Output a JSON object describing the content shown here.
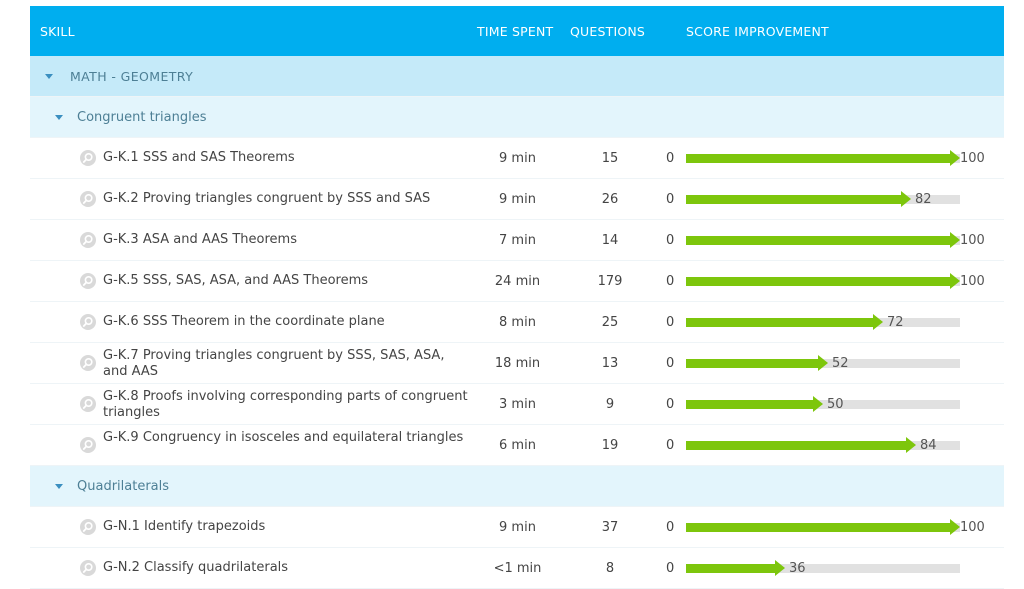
{
  "header": {
    "skill": "SKILL",
    "time_spent": "TIME SPENT",
    "questions": "QUESTIONS",
    "score_improvement": "SCORE IMPROVEMENT"
  },
  "category": {
    "label": "MATH - GEOMETRY"
  },
  "groups": [
    {
      "label": "Congruent triangles",
      "skills": [
        {
          "name": "G-K.1 SSS and SAS Theorems",
          "time": "9 min",
          "questions": "15",
          "start": "0",
          "score": 100
        },
        {
          "name": "G-K.2 Proving triangles congruent by SSS and SAS",
          "time": "9 min",
          "questions": "26",
          "start": "0",
          "score": 82
        },
        {
          "name": "G-K.3 ASA and AAS Theorems",
          "time": "7 min",
          "questions": "14",
          "start": "0",
          "score": 100
        },
        {
          "name": "G-K.5 SSS, SAS, ASA, and AAS Theorems",
          "time": "24 min",
          "questions": "179",
          "start": "0",
          "score": 100
        },
        {
          "name": "G-K.6 SSS Theorem in the coordinate plane",
          "time": "8 min",
          "questions": "25",
          "start": "0",
          "score": 72
        },
        {
          "name": "G-K.7 Proving triangles congruent by SSS, SAS, ASA, and AAS",
          "time": "18 min",
          "questions": "13",
          "start": "0",
          "score": 52
        },
        {
          "name": "G-K.8 Proofs involving corresponding parts of congruent triangles",
          "time": "3 min",
          "questions": "9",
          "start": "0",
          "score": 50
        },
        {
          "name": "G-K.9 Congruency in isosceles and equilateral triangles",
          "time": "6 min",
          "questions": "19",
          "start": "0",
          "score": 84
        }
      ]
    },
    {
      "label": "Quadrilaterals",
      "skills": [
        {
          "name": "G-N.1 Identify trapezoids",
          "time": "9 min",
          "questions": "37",
          "start": "0",
          "score": 100
        },
        {
          "name": "G-N.2 Classify quadrilaterals",
          "time": "<1 min",
          "questions": "8",
          "start": "0",
          "score": 36
        }
      ]
    }
  ],
  "colors": {
    "header_bg": "#00aeef",
    "category_bg": "#c5eaf9",
    "group_bg": "#e3f5fc",
    "bar_fill": "#7dc60c",
    "bar_track": "#e1e1e1"
  },
  "icons": {
    "expand": "caret-down-icon",
    "skill": "magnifier-icon"
  }
}
